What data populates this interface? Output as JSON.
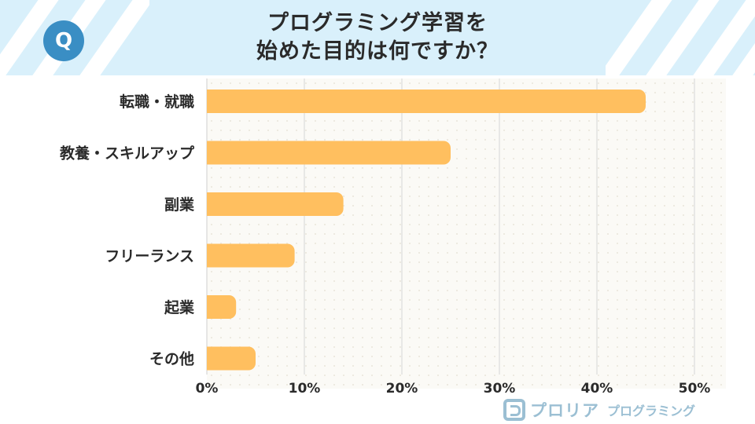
{
  "header": {
    "title_line1": "プログラミング学習を",
    "title_line2": "始めた目的は何ですか？",
    "badge": "Q"
  },
  "brand": {
    "name": "プロリア",
    "sub": "プログラミング"
  },
  "colors": {
    "header_bg": "#d9f0fb",
    "bar": "#ffbf5f",
    "badge": "#3a8ec4",
    "brand": "#9bbfd3"
  },
  "chart_data": {
    "type": "bar",
    "orientation": "horizontal",
    "categories": [
      "転職・就職",
      "教養・スキルアップ",
      "副業",
      "フリーランス",
      "起業",
      "その他"
    ],
    "values": [
      45,
      25,
      14,
      9,
      3,
      5
    ],
    "xlim": [
      0,
      50
    ],
    "x_ticks": [
      "0%",
      "10%",
      "20%",
      "30%",
      "40%",
      "50%"
    ],
    "grid": true
  }
}
